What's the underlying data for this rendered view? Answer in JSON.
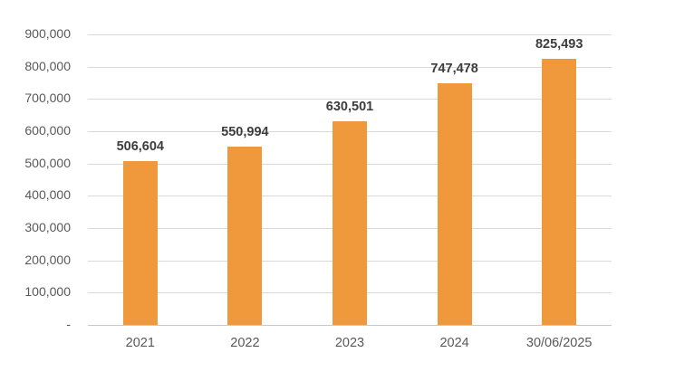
{
  "chart_data": {
    "type": "bar",
    "title": "",
    "xlabel": "",
    "ylabel": "",
    "categories": [
      "2021",
      "2022",
      "2023",
      "2024",
      "30/06/2025"
    ],
    "values": [
      506604,
      550994,
      630501,
      747478,
      825493
    ],
    "value_labels": [
      "506,604",
      "550,994",
      "630,501",
      "747,478",
      "825,493"
    ],
    "y_tick_labels": [
      "-",
      "100,000",
      "200,000",
      "300,000",
      "400,000",
      "500,000",
      "600,000",
      "700,000",
      "800,000",
      "900,000"
    ],
    "y_tick_step": 100000,
    "ylim": [
      0,
      900000
    ],
    "grid": true,
    "legend": "none",
    "bar_color": "#F0993C",
    "gridline_color": "#D9D9D9",
    "axis_line_color": "#C9C9C9",
    "axis_text_color": "#595959",
    "value_label_color": "#3D3D3D",
    "background_color": "#FFFFFF"
  }
}
